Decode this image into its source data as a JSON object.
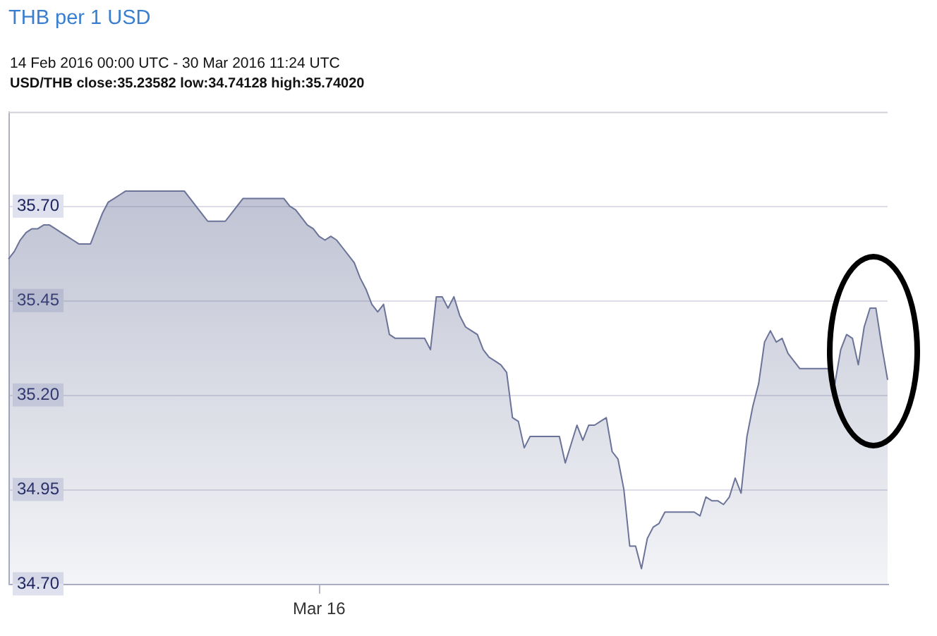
{
  "chart_data": {
    "type": "area",
    "title": "THB per 1 USD",
    "subtitle": "14 Feb 2016 00:00 UTC - 30 Mar 2016 11:24 UTC",
    "annotations": [
      "USD/THB close:35.23582 low:34.74128 high:35.74020"
    ],
    "categories": [
      null,
      null,
      null,
      null,
      null,
      null,
      null,
      null,
      null,
      null,
      null,
      null,
      null,
      null,
      null,
      null,
      null,
      null,
      null,
      null,
      null,
      null,
      null,
      null,
      null,
      null,
      null,
      null,
      null,
      null,
      null,
      null,
      null,
      null,
      null,
      null,
      null,
      null,
      null,
      null,
      null,
      null,
      null,
      null,
      null,
      null,
      null,
      null,
      null,
      null,
      null,
      null,
      null,
      "Mar 16",
      null,
      null,
      null,
      null,
      null,
      null,
      null,
      null,
      null,
      null,
      null,
      null,
      null,
      null,
      null,
      null,
      null,
      null,
      null,
      null,
      null,
      null,
      null,
      null,
      null,
      null,
      null,
      null,
      null,
      null,
      null,
      null,
      null,
      null,
      null,
      null,
      null,
      null,
      null,
      null,
      null,
      null,
      null,
      null,
      null,
      null,
      null,
      null,
      null,
      null,
      null,
      null,
      null,
      null,
      null,
      null,
      null,
      null,
      null,
      null,
      null,
      null,
      null,
      null,
      null,
      null,
      null,
      null,
      null,
      null,
      null,
      null,
      null,
      null,
      null,
      null,
      null,
      null,
      null,
      null,
      null,
      null,
      null,
      null,
      null,
      null,
      null,
      null,
      null,
      null,
      null,
      null,
      null,
      null,
      null,
      null,
      null
    ],
    "values": [
      35.56,
      35.58,
      35.61,
      35.63,
      35.64,
      35.64,
      35.65,
      35.65,
      35.64,
      35.63,
      35.62,
      35.61,
      35.6,
      35.6,
      35.6,
      35.64,
      35.68,
      35.71,
      35.72,
      35.73,
      35.74,
      35.74,
      35.74,
      35.74,
      35.74,
      35.74,
      35.74,
      35.74,
      35.74,
      35.74,
      35.74,
      35.72,
      35.7,
      35.68,
      35.66,
      35.66,
      35.66,
      35.66,
      35.68,
      35.7,
      35.72,
      35.72,
      35.72,
      35.72,
      35.72,
      35.72,
      35.72,
      35.72,
      35.7,
      35.69,
      35.67,
      35.65,
      35.64,
      35.62,
      35.61,
      35.62,
      35.61,
      35.59,
      35.57,
      35.55,
      35.51,
      35.48,
      35.44,
      35.42,
      35.44,
      35.36,
      35.35,
      35.35,
      35.35,
      35.35,
      35.35,
      35.35,
      35.32,
      35.46,
      35.46,
      35.43,
      35.46,
      35.41,
      35.38,
      35.37,
      35.36,
      35.32,
      35.3,
      35.29,
      35.28,
      35.26,
      35.14,
      35.13,
      35.06,
      35.09,
      35.09,
      35.09,
      35.09,
      35.09,
      35.09,
      35.02,
      35.07,
      35.12,
      35.08,
      35.12,
      35.12,
      35.13,
      35.14,
      35.05,
      35.03,
      34.95,
      34.8,
      34.8,
      34.74,
      34.82,
      34.85,
      34.86,
      34.89,
      34.89,
      34.89,
      34.89,
      34.89,
      34.89,
      34.88,
      34.93,
      34.92,
      34.92,
      34.91,
      34.93,
      34.98,
      34.94,
      35.09,
      35.17,
      35.23,
      35.34,
      35.37,
      35.34,
      35.35,
      35.31,
      35.29,
      35.27,
      35.27,
      35.27,
      35.27,
      35.27,
      35.27,
      35.23,
      35.32,
      35.36,
      35.35,
      35.28,
      35.38,
      35.43,
      35.43,
      35.33,
      35.24
    ],
    "color": "#6b7399",
    "marker": "none",
    "grid": "y",
    "ylim": [
      34.7,
      35.95
    ],
    "yticks": [
      {
        "value": 34.7,
        "label": "34.70"
      },
      {
        "value": 34.95,
        "label": "34.95"
      },
      {
        "value": 35.2,
        "label": "35.20"
      },
      {
        "value": 35.45,
        "label": "35.45"
      },
      {
        "value": 35.7,
        "label": "35.70"
      }
    ]
  }
}
